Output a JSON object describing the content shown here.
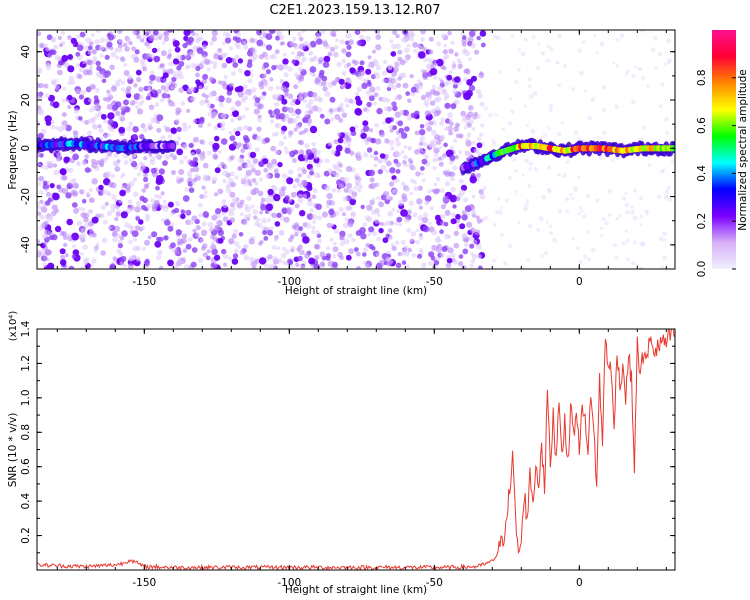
{
  "title": "C2E1.2023.159.13.12.R07",
  "colors": {
    "snr_line": "#e8392f",
    "spectrogram_scatter": "#8a3cf0",
    "axis": "#000000"
  },
  "chart_data": [
    {
      "type": "heatmap",
      "xlabel": "Height of straight line (km)",
      "ylabel": "Frequency (Hz)",
      "xlim": [
        -187,
        33
      ],
      "ylim": [
        -50,
        49
      ],
      "x_ticks": [
        -150,
        -100,
        -50,
        0
      ],
      "x_tick_labels": [
        "-150",
        "-100",
        "-50",
        "0"
      ],
      "y_ticks": [
        -40,
        -20,
        0,
        20,
        40
      ],
      "y_tick_labels": [
        "-40",
        "-20",
        "0",
        "20",
        "40"
      ],
      "colorbar": {
        "label": "Normalized spectral amplitude",
        "range": [
          0,
          1
        ],
        "ticks": [
          0.0,
          0.2,
          0.4,
          0.6,
          0.8
        ],
        "tick_labels": [
          "0.0",
          "0.2",
          "0.4",
          "0.6",
          "0.8"
        ],
        "colormap": [
          "#f0f0ff",
          "#d8b0f8",
          "#7a00ff",
          "#0000ff",
          "#00ffff",
          "#00ff00",
          "#ffff00",
          "#ff8800",
          "#ff0033",
          "#ff1090"
        ]
      },
      "ridge": [
        {
          "x": -187,
          "y": 1,
          "a": 0.25
        },
        {
          "x": -175,
          "y": 2,
          "a": 0.35
        },
        {
          "x": -165,
          "y": 1,
          "a": 0.3
        },
        {
          "x": -158,
          "y": 0,
          "a": 0.4
        },
        {
          "x": -150,
          "y": 1,
          "a": 0.25
        },
        {
          "x": -140,
          "y": 1,
          "a": 0.15
        },
        {
          "x": -40,
          "y": -8,
          "a": 0.15
        },
        {
          "x": -35,
          "y": -6,
          "a": 0.3
        },
        {
          "x": -28,
          "y": -2,
          "a": 0.45
        },
        {
          "x": -20,
          "y": 1,
          "a": 0.75
        },
        {
          "x": -15,
          "y": 1,
          "a": 0.65
        },
        {
          "x": -10,
          "y": 0,
          "a": 0.8
        },
        {
          "x": -5,
          "y": -1,
          "a": 0.7
        },
        {
          "x": 0,
          "y": 0,
          "a": 0.85
        },
        {
          "x": 8,
          "y": 0,
          "a": 0.8
        },
        {
          "x": 15,
          "y": -1,
          "a": 0.75
        },
        {
          "x": 22,
          "y": 0,
          "a": 0.7
        },
        {
          "x": 33,
          "y": 0,
          "a": 0.65
        }
      ]
    },
    {
      "type": "line",
      "xlabel": "Height of straight line (km)",
      "ylabel": "SNR (10 * v/v)",
      "y_multiplier": "(x10⁴)",
      "xlim": [
        -187,
        33
      ],
      "ylim": [
        0,
        1.4
      ],
      "x_ticks": [
        -150,
        -100,
        -50,
        0
      ],
      "x_tick_labels": [
        "-150",
        "-100",
        "-50",
        "0"
      ],
      "y_ticks": [
        0.2,
        0.4,
        0.6,
        0.8,
        1.0,
        1.2,
        1.4
      ],
      "y_tick_labels": [
        "0.2",
        "0.4",
        "0.6",
        "0.8",
        "1.0",
        "1.2",
        "1.4"
      ],
      "series": [
        {
          "x": [
            -187,
            -180,
            -170,
            -160,
            -157,
            -155,
            -150,
            -140,
            -120,
            -100,
            -80,
            -60,
            -45,
            -35,
            -30,
            -28,
            -26,
            -25,
            -24,
            -23,
            -22,
            -21,
            -20,
            -19,
            -18,
            -17,
            -16,
            -15,
            -14,
            -13,
            -12,
            -11,
            -10,
            -9,
            -8,
            -7,
            -6,
            -5,
            -4,
            -3,
            -2,
            -1,
            0,
            1,
            2,
            3,
            4,
            5,
            6,
            7,
            8,
            9,
            10,
            11,
            12,
            13,
            14,
            15,
            16,
            17,
            18,
            19,
            20,
            21,
            22,
            23,
            24,
            25,
            26,
            27,
            28,
            29,
            30,
            31,
            32,
            33
          ],
          "y": [
            0.03,
            0.025,
            0.02,
            0.03,
            0.04,
            0.06,
            0.02,
            0.015,
            0.015,
            0.015,
            0.015,
            0.015,
            0.015,
            0.02,
            0.05,
            0.1,
            0.2,
            0.35,
            0.45,
            0.65,
            0.3,
            0.1,
            0.15,
            0.45,
            0.3,
            0.55,
            0.4,
            0.6,
            0.5,
            0.75,
            0.45,
            1.05,
            0.6,
            0.9,
            0.65,
            1.0,
            0.7,
            0.85,
            0.6,
            0.95,
            0.8,
            0.9,
            0.7,
            1.0,
            0.85,
            0.65,
            1.05,
            0.8,
            0.5,
            1.1,
            0.75,
            1.35,
            1.2,
            1.15,
            0.8,
            1.3,
            1.05,
            1.2,
            1.0,
            1.25,
            1.1,
            0.6,
            1.3,
            1.15,
            1.25,
            1.2,
            1.3,
            1.35,
            1.25,
            1.3,
            1.3,
            1.35,
            1.3,
            1.35,
            1.38,
            1.36
          ]
        }
      ]
    }
  ]
}
